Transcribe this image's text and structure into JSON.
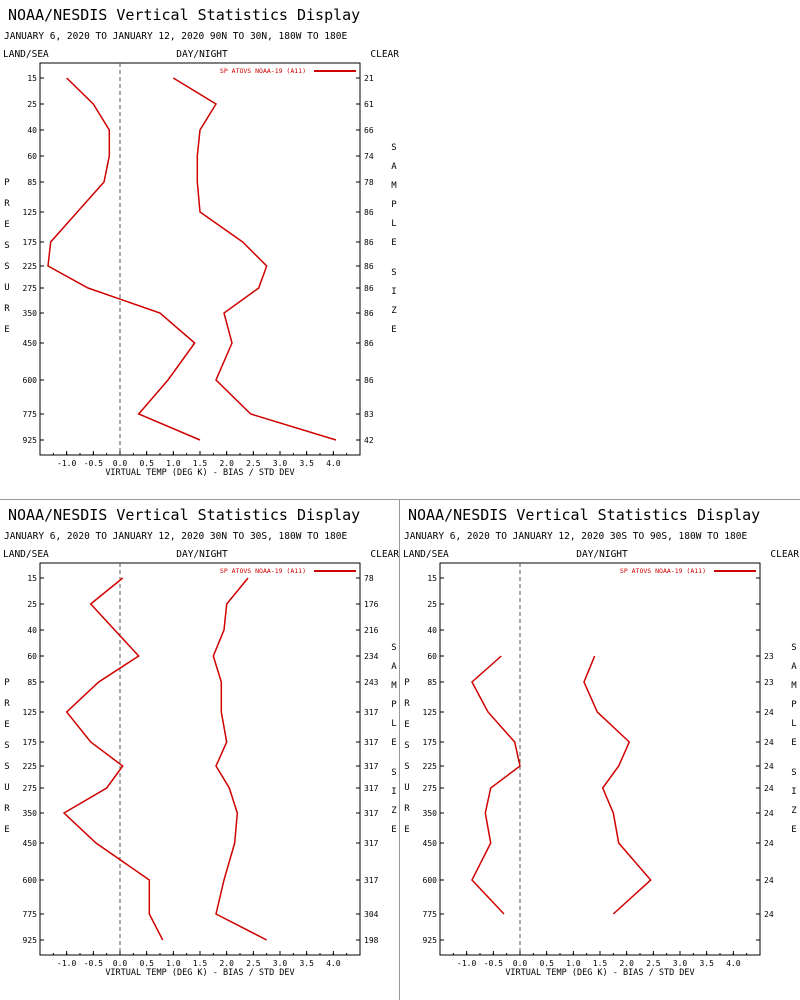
{
  "colors": {
    "series": "#d00000",
    "axis": "#000000",
    "zero_line": "#555555"
  },
  "panel_common": {
    "title": "NOAA/NESDIS Vertical Statistics Display",
    "left_header": "LAND/SEA",
    "center_header": "DAY/NIGHT",
    "right_header": "CLEAR",
    "left_vlabel": "PRESSURE",
    "right_vlabel1": "SAMPLE",
    "right_vlabel2": "SIZE",
    "xlabel": "VIRTUAL TEMP (DEG K) - BIAS / STD DEV",
    "legend": "SP ATOVS NOAA-19 (A11)"
  },
  "chart_data": [
    {
      "type": "line",
      "subtitle": "JANUARY 6, 2020 TO JANUARY 12, 2020   90N TO 30N, 180W TO 180E",
      "pressure_levels": [
        15,
        25,
        40,
        60,
        85,
        125,
        175,
        225,
        275,
        350,
        450,
        600,
        775,
        925
      ],
      "x_ticks": [
        "-1.0",
        "-0.5",
        "0.0",
        "0.5",
        "1.0",
        "1.5",
        "2.0",
        "2.5",
        "3.0",
        "3.5",
        "4.0"
      ],
      "xlim": [
        -1.5,
        4.5
      ],
      "sample_size": [
        "21",
        "61",
        "66",
        "74",
        "78",
        "86",
        "86",
        "86",
        "86",
        "86",
        "86",
        "86",
        "83",
        "42"
      ],
      "series": [
        {
          "values": [
            -1.0,
            -0.5,
            -0.2,
            -0.2,
            -0.3,
            -0.8,
            -1.3,
            -1.35,
            -0.6,
            0.75,
            1.4,
            0.9,
            0.35,
            1.5
          ]
        },
        {
          "values": [
            1.0,
            1.8,
            1.5,
            1.45,
            1.45,
            1.5,
            2.3,
            2.75,
            2.6,
            1.95,
            2.1,
            1.8,
            2.45,
            4.05
          ]
        }
      ]
    },
    {
      "type": "line",
      "subtitle": "JANUARY 6, 2020 TO JANUARY 12, 2020   30N TO 30S, 180W TO 180E",
      "pressure_levels": [
        15,
        25,
        40,
        60,
        85,
        125,
        175,
        225,
        275,
        350,
        450,
        600,
        775,
        925
      ],
      "x_ticks": [
        "-1.0",
        "-0.5",
        "0.0",
        "0.5",
        "1.0",
        "1.5",
        "2.0",
        "2.5",
        "3.0",
        "3.5",
        "4.0"
      ],
      "xlim": [
        -1.5,
        4.5
      ],
      "sample_size": [
        "78",
        "176",
        "216",
        "234",
        "243",
        "317",
        "317",
        "317",
        "317",
        "317",
        "317",
        "317",
        "304",
        "198"
      ],
      "series": [
        {
          "values": [
            0.05,
            -0.55,
            -0.1,
            0.35,
            -0.4,
            -1.0,
            -0.55,
            0.05,
            -0.25,
            -1.05,
            -0.45,
            0.55,
            0.55,
            0.8
          ]
        },
        {
          "values": [
            2.4,
            2.0,
            1.95,
            1.75,
            1.9,
            1.9,
            2.0,
            1.8,
            2.05,
            2.2,
            2.15,
            1.95,
            1.8,
            2.75
          ]
        }
      ]
    },
    {
      "type": "line",
      "subtitle": "JANUARY 6, 2020 TO JANUARY 12, 2020   30S TO 90S, 180W TO 180E",
      "pressure_levels": [
        15,
        25,
        40,
        60,
        85,
        125,
        175,
        225,
        275,
        350,
        450,
        600,
        775,
        925
      ],
      "x_ticks": [
        "-1.0",
        "-0.5",
        "0.0",
        "0.5",
        "1.0",
        "1.5",
        "2.0",
        "2.5",
        "3.0",
        "3.5",
        "4.0"
      ],
      "xlim": [
        -1.5,
        4.5
      ],
      "sample_size": [
        "",
        "",
        "",
        "23",
        "23",
        "24",
        "24",
        "24",
        "24",
        "24",
        "24",
        "24",
        "24",
        ""
      ],
      "series": [
        {
          "values": [
            null,
            null,
            null,
            -0.35,
            -0.9,
            -0.6,
            -0.1,
            0.0,
            -0.55,
            -0.65,
            -0.55,
            -0.9,
            -0.3,
            null
          ]
        },
        {
          "values": [
            null,
            null,
            null,
            1.4,
            1.2,
            1.45,
            2.05,
            1.85,
            1.55,
            1.75,
            1.85,
            2.45,
            1.75,
            null
          ]
        }
      ]
    }
  ]
}
